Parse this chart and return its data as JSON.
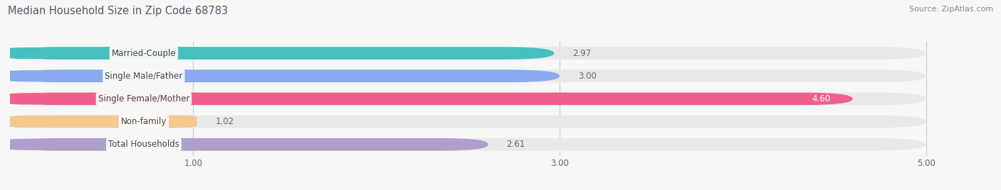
{
  "title": "Median Household Size in Zip Code 68783",
  "source": "Source: ZipAtlas.com",
  "categories": [
    "Married-Couple",
    "Single Male/Father",
    "Single Female/Mother",
    "Non-family",
    "Total Households"
  ],
  "values": [
    2.97,
    3.0,
    4.6,
    1.02,
    2.61
  ],
  "bar_colors": [
    "#45bfbf",
    "#88aaee",
    "#f0608a",
    "#f5c890",
    "#b09fcc"
  ],
  "bar_bg_color": "#e8e8e8",
  "xlim": [
    0,
    5.3
  ],
  "xdata_min": 0,
  "xdata_max": 5.0,
  "xticks": [
    1.0,
    3.0,
    5.0
  ],
  "xtick_labels": [
    "1.00",
    "3.00",
    "5.00"
  ],
  "title_fontsize": 10.5,
  "source_fontsize": 8,
  "label_fontsize": 8.5,
  "value_fontsize": 8.5,
  "background_color": "#f7f7f7",
  "bar_height": 0.55,
  "value_label_color_inside": "#ffffff",
  "value_label_color_outside": "#666666",
  "title_color": "#4a5a6a",
  "label_text_color": "#444444"
}
